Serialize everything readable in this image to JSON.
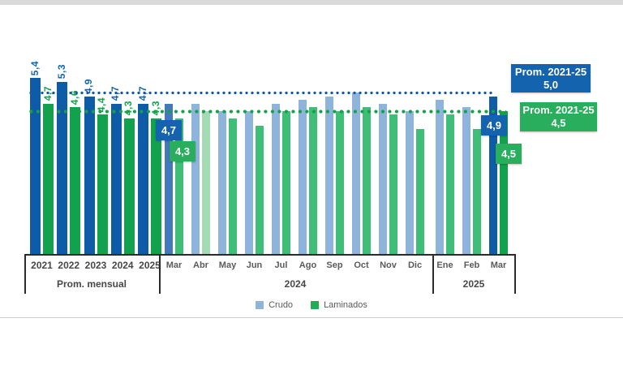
{
  "palette": {
    "crudo_dark": "#0E5CA8",
    "crudo_medium": "#4379BC",
    "crudo_light": "#8FB4DC",
    "laminados_dark": "#12A24E",
    "laminados_medium": "#3FBE77",
    "laminados_pale": "#A5DBB4",
    "crudo_label_color": "#1565AE",
    "laminados_label_color": "#12A24E",
    "callout_blue": "#1463AE",
    "callout_green": "#28AE5C",
    "axis_line": "#2B2B2B",
    "label_gray": "#595959"
  },
  "chart_data": {
    "type": "bar",
    "series": [
      {
        "name": "Crudo",
        "legend_color": "#8FB4DC"
      },
      {
        "name": "Laminados",
        "legend_color": "#22AC57"
      }
    ],
    "sections": [
      {
        "axis_label": "Prom. mensual",
        "categories": [
          "2021",
          "2022",
          "2023",
          "2024",
          "2025"
        ],
        "crudo": [
          5.4,
          5.3,
          4.9,
          4.7,
          4.7
        ],
        "crudo_display": [
          "5,4",
          "5,3",
          "4,9",
          "4,7",
          "4,7"
        ],
        "crudo_shades": [
          "dark",
          "dark",
          "dark",
          "dark",
          "dark"
        ],
        "laminados": [
          4.7,
          4.6,
          4.4,
          4.3,
          4.3
        ],
        "laminados_display": [
          "4,7",
          "4,6",
          "4,4",
          "4,3",
          "4,3"
        ],
        "laminados_shades": [
          "dark",
          "dark",
          "dark",
          "dark",
          "dark"
        ]
      },
      {
        "axis_label": "2024",
        "categories": [
          "Mar",
          "Abr",
          "May",
          "Jun",
          "Jul",
          "Ago",
          "Sep",
          "Oct",
          "Nov",
          "Dic"
        ],
        "crudo": [
          4.7,
          4.7,
          4.5,
          4.5,
          4.7,
          4.8,
          4.9,
          5.0,
          4.7,
          4.5
        ],
        "crudo_shades": [
          "medium",
          "light",
          "light",
          "light",
          "light",
          "light",
          "light",
          "light",
          "light",
          "light"
        ],
        "laminados": [
          4.3,
          4.5,
          4.3,
          4.1,
          4.5,
          4.6,
          4.5,
          4.6,
          4.4,
          4.0
        ],
        "laminados_shades": [
          "medium",
          "pale",
          "medium",
          "medium",
          "medium",
          "medium",
          "medium",
          "medium",
          "medium",
          "medium"
        ]
      },
      {
        "axis_label": "2025",
        "categories": [
          "Ene",
          "Feb",
          "Mar"
        ],
        "crudo": [
          4.8,
          4.6,
          4.9
        ],
        "crudo_shades": [
          "light",
          "light",
          "dark"
        ],
        "laminados": [
          4.4,
          4.0,
          4.5
        ],
        "laminados_shades": [
          "medium",
          "medium",
          "dark"
        ]
      }
    ],
    "reference_lines": [
      {
        "series": "Crudo",
        "label": "Prom. 2021-25",
        "value": 5.0,
        "value_display": "5,0",
        "color": "#0E5CA8"
      },
      {
        "series": "Laminados",
        "label": "Prom. 2021-25",
        "value": 4.5,
        "value_display": "4,5",
        "color": "#16A04C"
      }
    ],
    "callouts": [
      {
        "section": "2024",
        "category": "Mar",
        "series": "Crudo",
        "value_display": "4,7"
      },
      {
        "section": "2024",
        "category": "Mar",
        "series": "Laminados",
        "value_display": "4,3"
      },
      {
        "section": "2025",
        "category": "Mar",
        "series": "Crudo",
        "value_display": "4,9"
      },
      {
        "section": "2025",
        "category": "Mar",
        "series": "Laminados",
        "value_display": "4,5"
      }
    ],
    "legend_position": "bottom-center",
    "grid": "off"
  }
}
